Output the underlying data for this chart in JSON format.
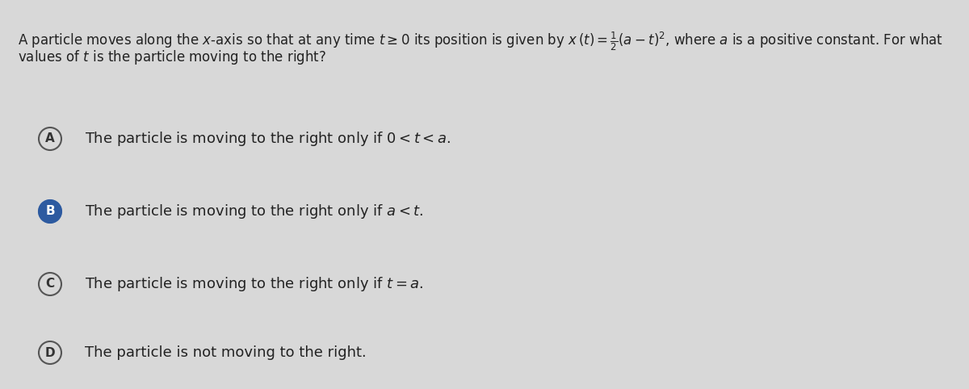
{
  "background_color": "#d8d8d8",
  "question_line1": "A particle moves along the $x$-axis so that at any time $t \\geq 0$ its position is given by $x\\,(t) = \\frac{1}{2}(a - t)^2$, where $a$ is a positive constant. For what",
  "question_line2": "values of $t$ is the particle moving to the right?",
  "options": [
    {
      "label": "A",
      "text": "The particle is moving to the right only if $0 < t < a$.",
      "filled": false,
      "fill_color": "#d8d8d8",
      "border_color": "#555555",
      "label_color": "#333333"
    },
    {
      "label": "B",
      "text": "The particle is moving to the right only if $a < t$.",
      "filled": true,
      "fill_color": "#2d5aa0",
      "border_color": "#2d5aa0",
      "label_color": "#ffffff"
    },
    {
      "label": "C",
      "text": "The particle is moving to the right only if $t = a$.",
      "filled": false,
      "fill_color": "#d8d8d8",
      "border_color": "#555555",
      "label_color": "#333333"
    },
    {
      "label": "D",
      "text": "The particle is not moving to the right.",
      "filled": false,
      "fill_color": "#d8d8d8",
      "border_color": "#555555",
      "label_color": "#333333"
    }
  ],
  "fig_width": 12.0,
  "fig_height": 4.82,
  "dpi": 100,
  "text_color": "#222222",
  "question_fontsize": 12.0,
  "option_fontsize": 13.0,
  "label_fontsize": 11.0
}
